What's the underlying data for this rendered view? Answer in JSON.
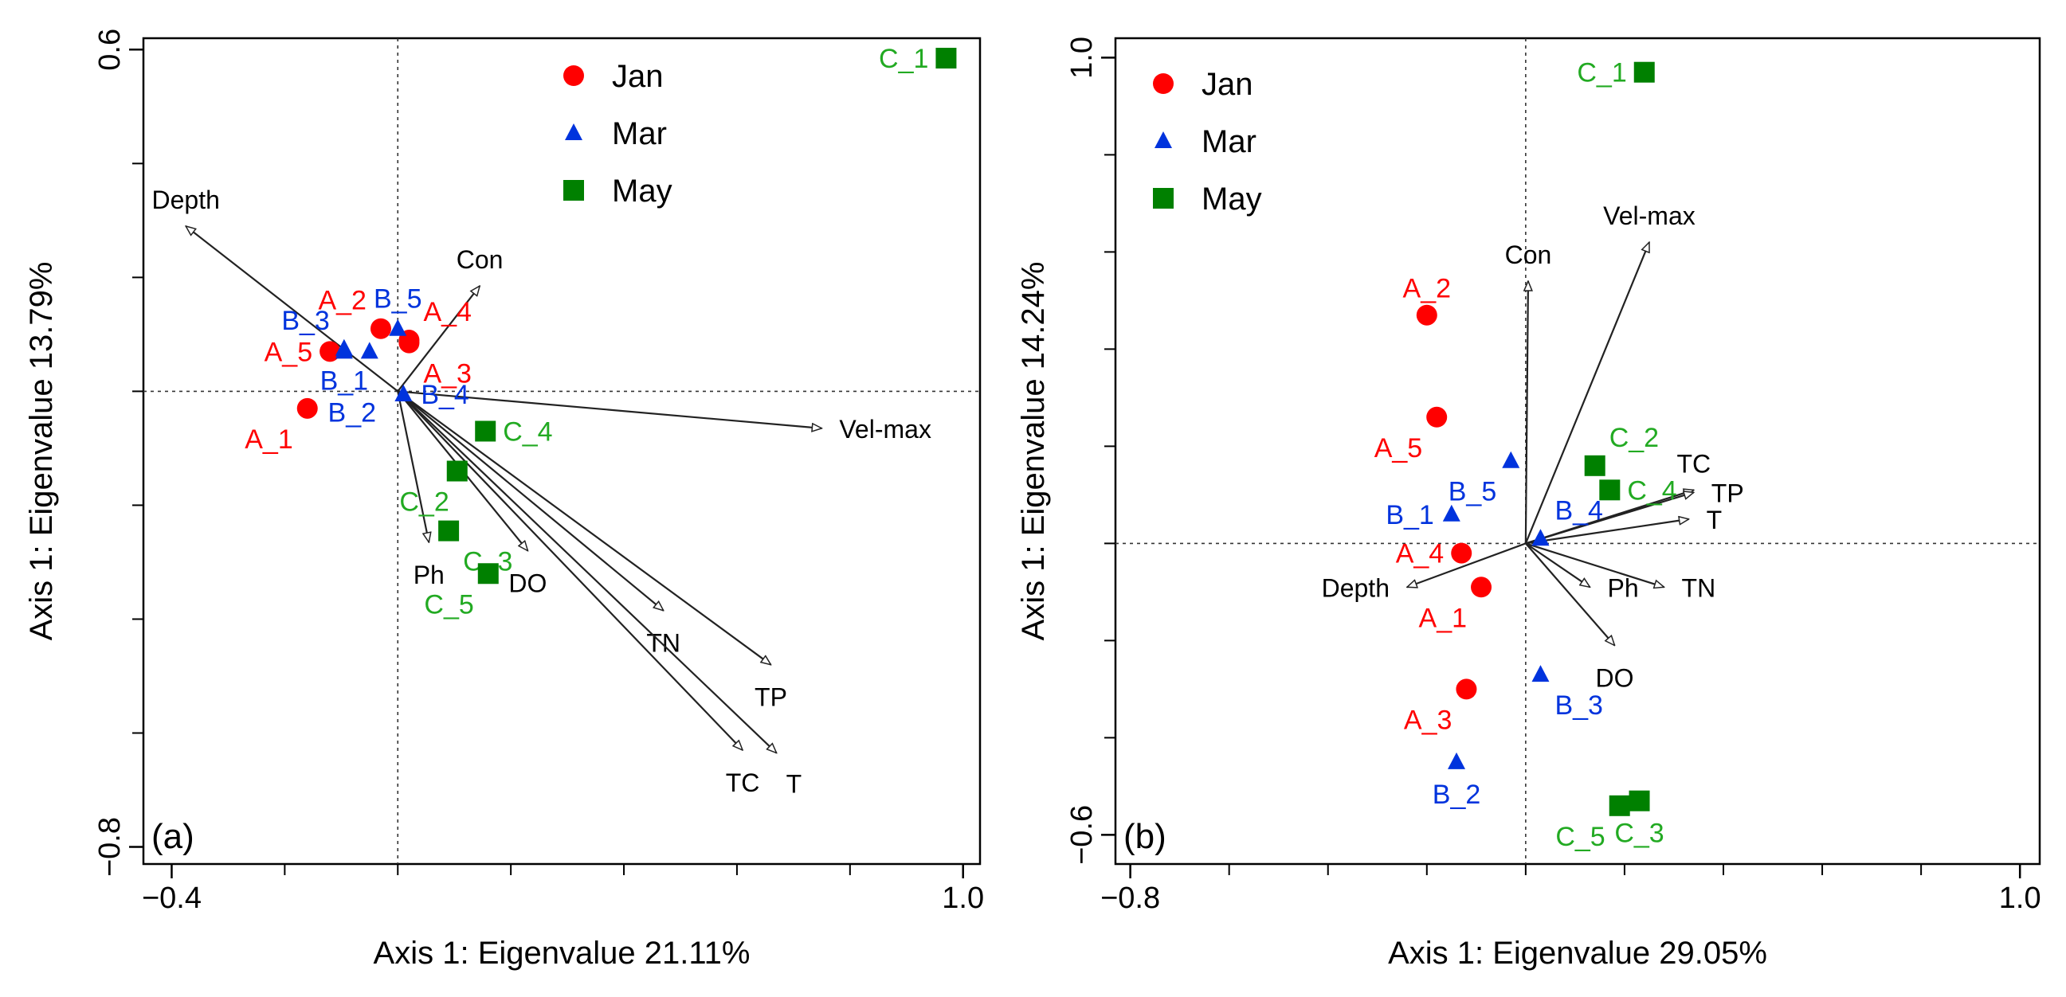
{
  "colors": {
    "jan": "#ff0000",
    "mar": "#0033dd",
    "may": "#22aa22",
    "may_marker": "#008000",
    "axis": "#000000",
    "arrow": "#222222"
  },
  "chart_data": [
    {
      "type": "scatter",
      "subtype": "ordination biplot",
      "panel_label": "(a)",
      "xlabel": "Axis 1: Eigenvalue 21.11%",
      "ylabel": "Axis 1: Eigenvalue 13.79%",
      "xlim": [
        -0.45,
        1.03
      ],
      "ylim": [
        -0.83,
        0.62
      ],
      "x_ticks": [
        -0.4,
        1.0
      ],
      "x_tick_labels": [
        "−0.4",
        "1.0"
      ],
      "y_ticks": [
        -0.8,
        0.6
      ],
      "y_tick_labels": [
        "−0.8",
        "0.6"
      ],
      "minor_tick_step": 0.2,
      "origin": [
        0.0,
        0.0
      ],
      "legend": {
        "position": "top",
        "entries": [
          {
            "label": "Jan",
            "marker": "circle",
            "group": "jan"
          },
          {
            "label": "Mar",
            "marker": "triangle",
            "group": "mar"
          },
          {
            "label": "May",
            "marker": "square",
            "group": "may"
          }
        ]
      },
      "series": [
        {
          "name": "Jan",
          "group": "jan",
          "marker": "circle",
          "points": [
            {
              "label": "A_1",
              "x": -0.16,
              "y": -0.03,
              "label_side": "bottom-left"
            },
            {
              "label": "A_2",
              "x": -0.03,
              "y": 0.11,
              "label_side": "top-left"
            },
            {
              "label": "A_3",
              "x": 0.02,
              "y": 0.085,
              "label_side": "bottom-right"
            },
            {
              "label": "A_4",
              "x": 0.02,
              "y": 0.09,
              "label_side": "top-right"
            },
            {
              "label": "A_5",
              "x": -0.12,
              "y": 0.07,
              "label_side": "left"
            }
          ]
        },
        {
          "name": "Mar",
          "group": "mar",
          "marker": "triangle",
          "points": [
            {
              "label": "B_1",
              "x": -0.095,
              "y": 0.07,
              "label_side": "bottom"
            },
            {
              "label": "B_2",
              "x": -0.05,
              "y": 0.07,
              "label_side": "below-far"
            },
            {
              "label": "B_3",
              "x": -0.095,
              "y": 0.075,
              "label_side": "top-left"
            },
            {
              "label": "B_4",
              "x": 0.01,
              "y": -0.005,
              "label_side": "right"
            },
            {
              "label": "B_5",
              "x": 0.0,
              "y": 0.11,
              "label_side": "top"
            }
          ]
        },
        {
          "name": "May",
          "group": "may",
          "marker": "square",
          "points": [
            {
              "label": "C_1",
              "x": 0.97,
              "y": 0.585,
              "label_side": "left"
            },
            {
              "label": "C_2",
              "x": 0.105,
              "y": -0.14,
              "label_side": "below-left"
            },
            {
              "label": "C_3",
              "x": 0.09,
              "y": -0.245,
              "label_side": "bottom-right"
            },
            {
              "label": "C_4",
              "x": 0.155,
              "y": -0.07,
              "label_side": "right"
            },
            {
              "label": "C_5",
              "x": 0.16,
              "y": -0.32,
              "label_side": "bottom-left"
            }
          ]
        }
      ],
      "vectors": [
        {
          "label": "Depth",
          "x": -0.375,
          "y": 0.29,
          "label_side": "above"
        },
        {
          "label": "Con",
          "x": 0.145,
          "y": 0.185,
          "label_side": "above"
        },
        {
          "label": "Vel-max",
          "x": 0.75,
          "y": -0.065,
          "label_side": "right"
        },
        {
          "label": "Ph",
          "x": 0.055,
          "y": -0.265,
          "label_side": "below"
        },
        {
          "label": "DO",
          "x": 0.23,
          "y": -0.28,
          "label_side": "below"
        },
        {
          "label": "TN",
          "x": 0.47,
          "y": -0.385,
          "label_side": "below"
        },
        {
          "label": "TP",
          "x": 0.66,
          "y": -0.48,
          "label_side": "below"
        },
        {
          "label": "TC",
          "x": 0.61,
          "y": -0.63,
          "label_side": "below"
        },
        {
          "label": "T",
          "x": 0.67,
          "y": -0.635,
          "label_side": "below-right"
        }
      ]
    },
    {
      "type": "scatter",
      "subtype": "ordination biplot",
      "panel_label": "(b)",
      "xlabel": "Axis 1: Eigenvalue 29.05%",
      "ylabel": "Axis 1: Eigenvalue 14.24%",
      "xlim": [
        -0.83,
        1.04
      ],
      "ylim": [
        -0.66,
        1.04
      ],
      "x_ticks": [
        -0.8,
        1.0
      ],
      "x_tick_labels": [
        "−0.8",
        "1.0"
      ],
      "y_ticks": [
        -0.6,
        1.0
      ],
      "y_tick_labels": [
        "−0.6",
        "1.0"
      ],
      "minor_tick_step": 0.2,
      "origin": [
        0.0,
        0.0
      ],
      "legend": {
        "position": "top-left",
        "entries": [
          {
            "label": "Jan",
            "marker": "circle",
            "group": "jan"
          },
          {
            "label": "Mar",
            "marker": "triangle",
            "group": "mar"
          },
          {
            "label": "May",
            "marker": "square",
            "group": "may"
          }
        ]
      },
      "series": [
        {
          "name": "Jan",
          "group": "jan",
          "marker": "circle",
          "points": [
            {
              "label": "A_1",
              "x": -0.09,
              "y": -0.09,
              "label_side": "bottom-left"
            },
            {
              "label": "A_2",
              "x": -0.2,
              "y": 0.47,
              "label_side": "above"
            },
            {
              "label": "A_3",
              "x": -0.12,
              "y": -0.3,
              "label_side": "bottom-left"
            },
            {
              "label": "A_4",
              "x": -0.13,
              "y": -0.02,
              "label_side": "left"
            },
            {
              "label": "A_5",
              "x": -0.18,
              "y": 0.26,
              "label_side": "bottom-left"
            }
          ]
        },
        {
          "name": "Mar",
          "group": "mar",
          "marker": "triangle",
          "points": [
            {
              "label": "B_1",
              "x": -0.15,
              "y": 0.06,
              "label_side": "left"
            },
            {
              "label": "B_2",
              "x": -0.14,
              "y": -0.45,
              "label_side": "below"
            },
            {
              "label": "B_3",
              "x": 0.03,
              "y": -0.27,
              "label_side": "bottom-right"
            },
            {
              "label": "B_4",
              "x": 0.03,
              "y": 0.01,
              "label_side": "top-right"
            },
            {
              "label": "B_5",
              "x": -0.03,
              "y": 0.17,
              "label_side": "bottom-left"
            }
          ]
        },
        {
          "name": "May",
          "group": "may",
          "marker": "square",
          "points": [
            {
              "label": "C_1",
              "x": 0.24,
              "y": 0.97,
              "label_side": "left"
            },
            {
              "label": "C_2",
              "x": 0.14,
              "y": 0.16,
              "label_side": "top-right"
            },
            {
              "label": "C_3",
              "x": 0.23,
              "y": -0.53,
              "label_side": "below"
            },
            {
              "label": "C_4",
              "x": 0.17,
              "y": 0.11,
              "label_side": "right"
            },
            {
              "label": "C_5",
              "x": 0.19,
              "y": -0.54,
              "label_side": "bottom-left"
            }
          ]
        }
      ],
      "vectors": [
        {
          "label": "Depth",
          "x": -0.24,
          "y": -0.09,
          "label_side": "left"
        },
        {
          "label": "Con",
          "x": 0.005,
          "y": 0.54,
          "label_side": "above"
        },
        {
          "label": "Vel-max",
          "x": 0.25,
          "y": 0.62,
          "label_side": "above"
        },
        {
          "label": "TC",
          "x": 0.34,
          "y": 0.11,
          "label_side": "above"
        },
        {
          "label": "TP",
          "x": 0.34,
          "y": 0.105,
          "label_side": "right"
        },
        {
          "label": "T",
          "x": 0.33,
          "y": 0.05,
          "label_side": "right"
        },
        {
          "label": "Ph",
          "x": 0.13,
          "y": -0.09,
          "label_side": "right"
        },
        {
          "label": "TN",
          "x": 0.28,
          "y": -0.09,
          "label_side": "right"
        },
        {
          "label": "DO",
          "x": 0.18,
          "y": -0.21,
          "label_side": "below"
        }
      ]
    }
  ]
}
